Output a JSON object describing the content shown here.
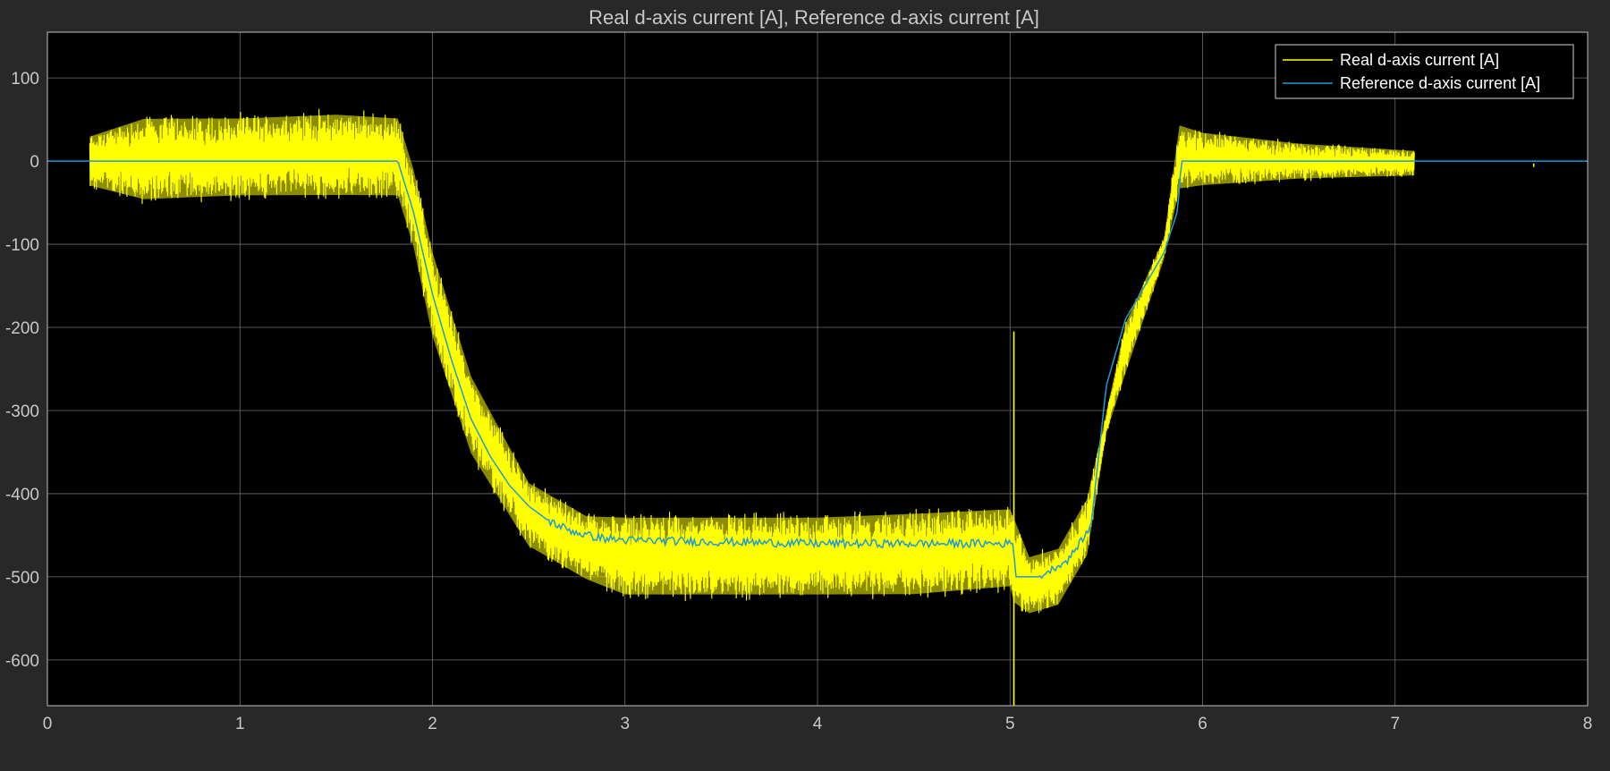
{
  "chart_data": {
    "type": "line",
    "title": "Real d-axis current [A], Reference d-axis current [A]",
    "xlabel": "",
    "ylabel": "",
    "xlim": [
      0,
      8
    ],
    "ylim": [
      -655,
      155
    ],
    "x_ticks": [
      0,
      1,
      2,
      3,
      4,
      5,
      6,
      7,
      8
    ],
    "y_ticks": [
      100,
      0,
      -100,
      -200,
      -300,
      -400,
      -500,
      -600
    ],
    "grid": true,
    "legend_position": "top-right",
    "colors": {
      "figure_background": "#282828",
      "axes_background": "#000000",
      "axes_edge": "#bfbfbf",
      "grid": "#6e6e6e",
      "text": "#c8c8c8",
      "legend_text": "#ffffff"
    },
    "series": [
      {
        "name": "Real d-axis current [A]",
        "color": "#ffff00",
        "envelope": {
          "x": [
            0.22,
            0.5,
            1.0,
            1.5,
            1.82,
            1.9,
            2.0,
            2.2,
            2.5,
            2.8,
            3.0,
            3.5,
            4.0,
            4.5,
            5.0,
            5.02,
            5.1,
            5.25,
            5.4,
            5.5,
            5.6,
            5.8,
            5.88,
            6.0,
            6.5,
            7.1
          ],
          "upper": [
            35,
            60,
            60,
            65,
            60,
            0,
            -100,
            -250,
            -380,
            -420,
            -420,
            -420,
            -420,
            -415,
            -410,
            -420,
            -470,
            -460,
            -400,
            -300,
            -190,
            -90,
            50,
            40,
            25,
            15
          ],
          "lower": [
            -35,
            -55,
            -50,
            -50,
            -50,
            -110,
            -220,
            -360,
            -470,
            -510,
            -530,
            -530,
            -530,
            -530,
            -520,
            -540,
            -550,
            -540,
            -480,
            -330,
            -260,
            -120,
            -40,
            -35,
            -25,
            -20
          ]
        },
        "spike": {
          "x": 5.02,
          "y_max": -205,
          "y_min": -655
        },
        "outlier": {
          "x": 7.72,
          "y_max": -3,
          "y_min": -7
        }
      },
      {
        "name": "Reference d-axis current [A]",
        "color": "#1e9bd7",
        "x": [
          0,
          1.82,
          1.9,
          2.0,
          2.1,
          2.2,
          2.3,
          2.4,
          2.5,
          2.6,
          2.7,
          2.8,
          2.9,
          3.0,
          3.5,
          4.0,
          4.5,
          5.02,
          5.025,
          5.15,
          5.3,
          5.42,
          5.5,
          5.6,
          5.7,
          5.8,
          5.87,
          5.89,
          8
        ],
        "y": [
          0,
          0,
          -60,
          -160,
          -240,
          -310,
          -355,
          -390,
          -415,
          -432,
          -443,
          -450,
          -454,
          -456,
          -458,
          -460,
          -460,
          -460,
          -500,
          -500,
          -480,
          -440,
          -270,
          -190,
          -150,
          -110,
          -60,
          0,
          0
        ]
      }
    ]
  }
}
